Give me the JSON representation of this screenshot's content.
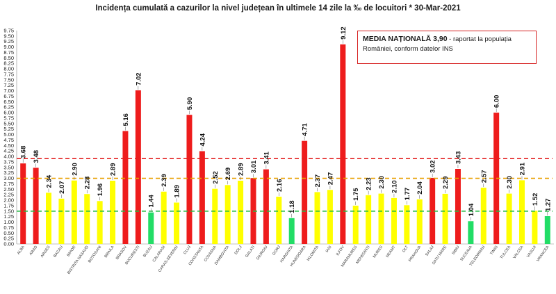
{
  "title": "Incidența cumulată a cazurilor la nivel județean în ultimele 14 zile la ‰ de locuitori * 30-Mar-2021",
  "note": {
    "strong": "MEDIA NAȚIONALĂ  3,90",
    "rest": " - raportat la populația României, conform datelor INS"
  },
  "colors": {
    "red": "#ee1c1c",
    "yellow": "#ffff00",
    "green": "#22dd66",
    "red_line": "#e32020",
    "orange_line": "#e8a000",
    "green_line": "#22bb44"
  },
  "chart_data": {
    "type": "bar",
    "title": "Incidența cumulată a cazurilor la nivel județean în ultimele 14 zile la ‰ de locuitori * 30-Mar-2021",
    "xlabel": "",
    "ylabel": "",
    "ylim": [
      0,
      9.75
    ],
    "ytick_step": 0.25,
    "grid": false,
    "reference_lines": [
      {
        "value": 3.9,
        "color": "red",
        "style": "dashed"
      },
      {
        "value": 3.0,
        "color": "orange",
        "style": "dashed"
      },
      {
        "value": 1.5,
        "color": "green",
        "style": "dashed"
      }
    ],
    "categories": [
      "ALBA",
      "ARAD",
      "ARGES",
      "BACAU",
      "BIHOR",
      "BISTRITA NASAUD",
      "BOTOSANI",
      "BRAILA",
      "BRASOV",
      "BUCURESTI",
      "BUZAU",
      "CALARASI",
      "CARAS-SEVERIN",
      "CLUJ",
      "CONSTANTA",
      "COVASNA",
      "DAMBOVITA",
      "DOLJ",
      "GALATI",
      "GIURGIU",
      "GORJ",
      "HARGHITA",
      "HUNEDOARA",
      "IALOMITA",
      "IASI",
      "ILFOV",
      "MARAMURES",
      "MEHEDINTI",
      "MURES",
      "NEAMT",
      "OLT",
      "PRAHOVA",
      "SALAJ",
      "SATU MARE",
      "SIBIU",
      "SUCEAVA",
      "TELEORMAN",
      "TIMIS",
      "TULCEA",
      "VALCEA",
      "VASLUI",
      "VRANCEA"
    ],
    "values": [
      3.68,
      3.48,
      2.34,
      2.07,
      2.9,
      2.28,
      1.96,
      2.89,
      5.16,
      7.02,
      1.44,
      2.39,
      1.89,
      5.9,
      4.24,
      2.52,
      2.69,
      2.89,
      3.01,
      3.41,
      2.16,
      1.18,
      4.71,
      2.37,
      2.47,
      9.12,
      1.75,
      2.23,
      2.3,
      2.1,
      1.77,
      2.04,
      3.02,
      2.29,
      3.43,
      1.04,
      2.57,
      6.0,
      2.3,
      2.91,
      1.52,
      1.27
    ],
    "labels": [
      "3.68",
      "3.48",
      "2.34",
      "2.07",
      "2.90",
      "2.28",
      "1.96",
      "2.89",
      "5.16",
      "7.02",
      "1.44",
      "2.39",
      "1.89",
      "5.90",
      "4.24",
      "2.52",
      "2.69",
      "2.89",
      "3.01",
      "3.41",
      "2.16",
      "1.18",
      "4.71",
      "2.37",
      "2.47",
      "9.12",
      "1.75",
      "2.23",
      "2.30",
      "2.10",
      "1.77",
      "2.04",
      "3.02",
      "2.29",
      "3.43",
      "1.04",
      "2.57",
      "6.00",
      "2.30",
      "2.91",
      "1.52",
      "1.27"
    ]
  }
}
